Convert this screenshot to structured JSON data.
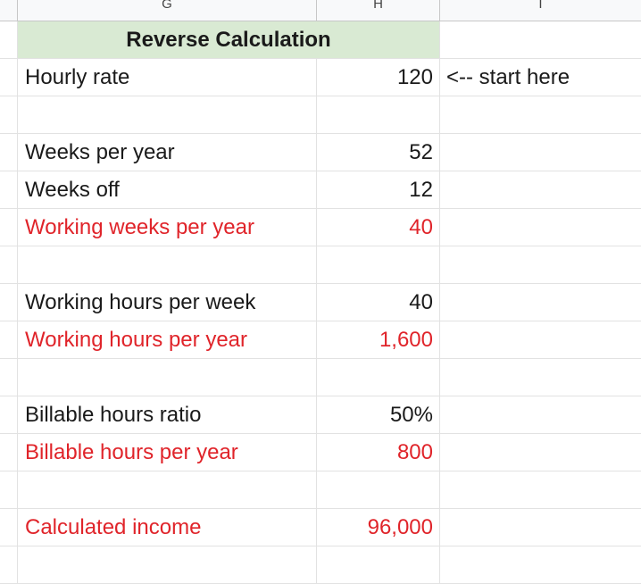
{
  "columns": [
    "G",
    "H",
    "I"
  ],
  "title": "Reverse Calculation",
  "rows": [
    {
      "label": "Hourly rate",
      "value": "120",
      "note": "<-- start here",
      "color": "black"
    },
    {
      "label": "",
      "value": "",
      "note": "",
      "color": "black"
    },
    {
      "label": "Weeks per year",
      "value": "52",
      "note": "",
      "color": "black"
    },
    {
      "label": "Weeks off",
      "value": "12",
      "note": "",
      "color": "black"
    },
    {
      "label": "Working weeks per year",
      "value": "40",
      "note": "",
      "color": "red"
    },
    {
      "label": "",
      "value": "",
      "note": "",
      "color": "black"
    },
    {
      "label": "Working hours per week",
      "value": "40",
      "note": "",
      "color": "black"
    },
    {
      "label": "Working hours per year",
      "value": "1,600",
      "note": "",
      "color": "red"
    },
    {
      "label": "",
      "value": "",
      "note": "",
      "color": "black"
    },
    {
      "label": "Billable hours ratio",
      "value": "50%",
      "note": "",
      "color": "black"
    },
    {
      "label": "Billable hours per year",
      "value": "800",
      "note": "",
      "color": "red"
    },
    {
      "label": "",
      "value": "",
      "note": "",
      "color": "black"
    },
    {
      "label": "Calculated income",
      "value": "96,000",
      "note": "",
      "color": "red"
    },
    {
      "label": "",
      "value": "",
      "note": "",
      "color": "black"
    }
  ],
  "colors": {
    "header_fill": "#d9ead3",
    "red_text": "#e0242a",
    "grid": "#e2e2e2"
  }
}
